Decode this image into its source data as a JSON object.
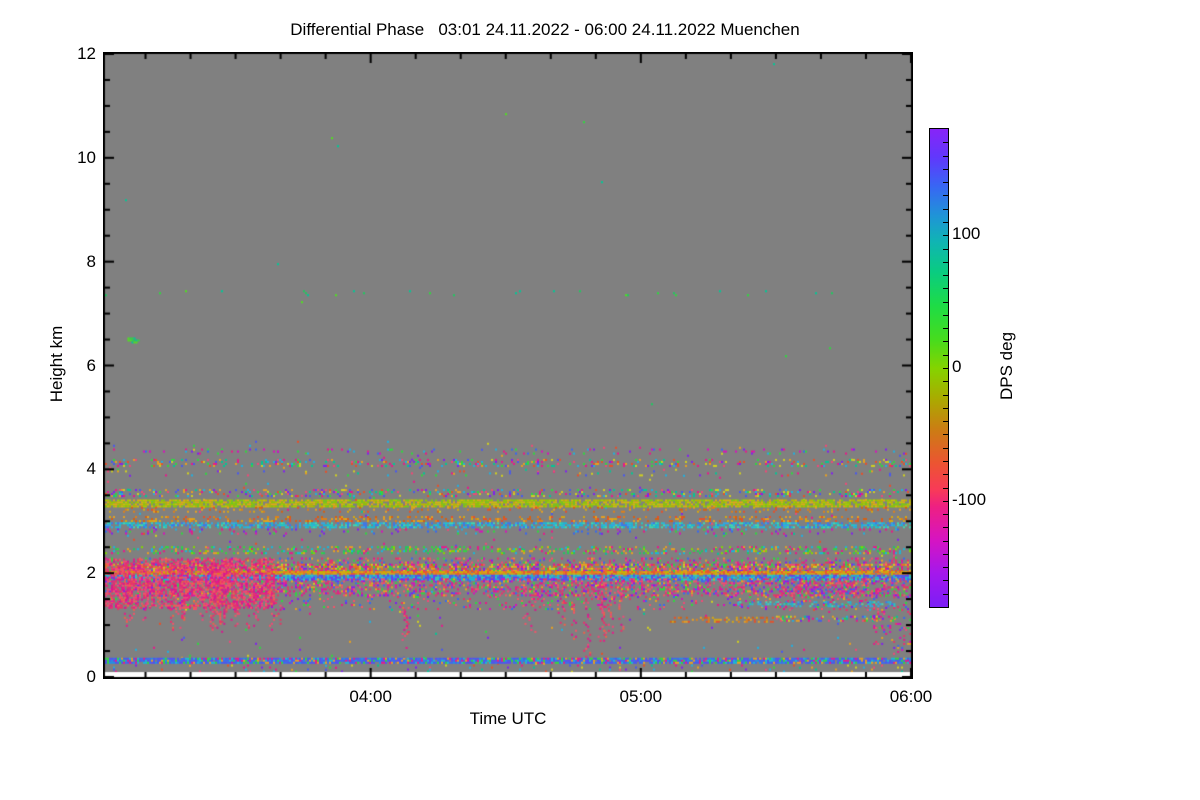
{
  "chart_data": {
    "type": "heatmap",
    "title": "Differential Phase   03:01 24.11.2022 - 06:00 24.11.2022 Muenchen",
    "xlabel": "Time UTC",
    "ylabel": "Height km",
    "background_color": "#808080",
    "below_range_color": "#ffffff",
    "x_axis": {
      "start_label": "03:01",
      "end_label": "06:00",
      "start_hours": 3.0167,
      "end_hours": 6.0,
      "major_ticks": [
        {
          "value": 4,
          "label": "04:00"
        },
        {
          "value": 5,
          "label": "05:00"
        },
        {
          "value": 6,
          "label": "06:00"
        }
      ],
      "minor_tick_minutes": 10
    },
    "y_axis": {
      "min": 0,
      "max": 12,
      "major_ticks": [
        0,
        2,
        4,
        6,
        8,
        10,
        12
      ],
      "minor_tick_km": 0.5
    },
    "colorbar": {
      "label": "DPS deg",
      "min": -180,
      "max": 180,
      "ticks": [
        {
          "value": 100,
          "label": "100"
        },
        {
          "value": 0,
          "label": "0"
        },
        {
          "value": -100,
          "label": "-100"
        }
      ],
      "minor_tick_deg": 10,
      "stops": [
        [
          0.0,
          "#8824F8"
        ],
        [
          0.06,
          "#6038FC"
        ],
        [
          0.12,
          "#3866F4"
        ],
        [
          0.18,
          "#2093D8"
        ],
        [
          0.235,
          "#10B4B4"
        ],
        [
          0.3,
          "#0ACC80"
        ],
        [
          0.37,
          "#1EDC46"
        ],
        [
          0.44,
          "#46DC1E"
        ],
        [
          0.5,
          "#84D400"
        ],
        [
          0.565,
          "#AAAA00"
        ],
        [
          0.63,
          "#CC7C14"
        ],
        [
          0.7,
          "#EC5432"
        ],
        [
          0.755,
          "#F83A58"
        ],
        [
          0.79,
          "#EE2082"
        ],
        [
          0.86,
          "#D614C2"
        ],
        [
          0.93,
          "#A418EC"
        ],
        [
          1.0,
          "#7C1EF6"
        ]
      ]
    },
    "seed": 7,
    "palettes": {
      "mixed": [
        "#E8188C",
        "#F04878",
        "#30D840",
        "#20B0E0",
        "#E8A020",
        "#8020F0",
        "#4858F0",
        "#D0D020",
        "#E85028",
        "#00C896"
      ],
      "greens": [
        "#30D840",
        "#20C860",
        "#50E020",
        "#00C896"
      ],
      "greens2": [
        "#30D840",
        "#20C860",
        "#80D800",
        "#E8188C",
        "#E8A020",
        "#18B8D8"
      ],
      "yellowgreen": [
        "#A8CC00",
        "#90C800",
        "#B8B800",
        "#CCBB10",
        "#78C818",
        "#E0A818"
      ],
      "orange": [
        "#E08018",
        "#E8A020",
        "#D86010",
        "#E85028",
        "#D8A810"
      ],
      "cyanline": [
        "#18B8D8",
        "#20C8C8",
        "#30A8E8",
        "#40D8B0",
        "#3878F0"
      ],
      "cyanblue": [
        "#2898E8",
        "#18B8D8",
        "#4858F0",
        "#30C8C0",
        "#6040F0"
      ],
      "orangeline": [
        "#E09018",
        "#D8A810",
        "#E87820",
        "#C8B400",
        "#E85830"
      ],
      "bluemulti": [
        "#4858F0",
        "#3A6CF0",
        "#2090E8",
        "#6048F0",
        "#E8188C",
        "#30D840",
        "#E8A020",
        "#18B8D8",
        "#4858F0",
        "#3A6CF0"
      ],
      "pinkhot": [
        "#F04878",
        "#EE2D6E",
        "#E8188C",
        "#F25568",
        "#E03868",
        "#D81690",
        "#F06048"
      ],
      "pinkmix": [
        "#F04878",
        "#E8188C",
        "#EE2D6E",
        "#D810BC",
        "#8020F0",
        "#30D840",
        "#E8A020",
        "#3868F0",
        "#F25568",
        "#E03868"
      ],
      "coolmix": [
        "#D810BC",
        "#8020F0",
        "#30D840",
        "#3868F0",
        "#E8188C",
        "#20B0E0"
      ],
      "warmmix": [
        "#E8A020",
        "#E85028",
        "#F04878",
        "#D0D020",
        "#30D840",
        "#E8188C",
        "#E07820",
        "#8020F0"
      ]
    },
    "features": [
      {
        "kind": "field",
        "t": [
          3.0167,
          6.0
        ],
        "h": [
          0.1,
          4.55
        ],
        "density": 0.007,
        "palette": "mixed"
      },
      {
        "kind": "field",
        "t": [
          3.0167,
          6.0
        ],
        "h": [
          4.55,
          11.9
        ],
        "density": 0.00015,
        "palette": "greens"
      },
      {
        "kind": "band",
        "t": [
          3.0167,
          6.0
        ],
        "h": [
          7.37,
          7.45
        ],
        "density": 0.02,
        "palette": "greens"
      },
      {
        "kind": "band",
        "t": [
          3.1,
          3.14
        ],
        "h": [
          6.44,
          6.54
        ],
        "density": 0.6,
        "palette": "greens"
      },
      {
        "kind": "band",
        "t": [
          3.0167,
          6.0
        ],
        "h": [
          4.3,
          4.4
        ],
        "density": 0.09,
        "palette": "coolmix"
      },
      {
        "kind": "band",
        "t": [
          3.0167,
          6.0
        ],
        "h": [
          4.08,
          4.2
        ],
        "density": 0.2,
        "palette": "mixed"
      },
      {
        "kind": "band",
        "t": [
          3.0167,
          6.0
        ],
        "h": [
          3.88,
          3.98
        ],
        "density": 0.05,
        "palette": "mixed"
      },
      {
        "kind": "band",
        "t": [
          3.0167,
          6.0
        ],
        "h": [
          3.5,
          3.62
        ],
        "density": 0.25,
        "palette": "mixed"
      },
      {
        "kind": "band",
        "t": [
          3.0167,
          6.0
        ],
        "h": [
          3.3,
          3.42
        ],
        "density": 0.8,
        "palette": "yellowgreen"
      },
      {
        "kind": "band",
        "t": [
          3.0167,
          6.0
        ],
        "h": [
          3.2,
          3.28
        ],
        "density": 0.15,
        "palette": "orange"
      },
      {
        "kind": "band",
        "t": [
          3.0167,
          6.0
        ],
        "h": [
          3.0,
          3.1
        ],
        "density": 0.28,
        "palette": "orange"
      },
      {
        "kind": "band",
        "t": [
          3.0167,
          6.0
        ],
        "h": [
          2.9,
          2.98
        ],
        "density": 0.6,
        "palette": "cyanline"
      },
      {
        "kind": "band",
        "t": [
          3.0167,
          6.0
        ],
        "h": [
          2.76,
          2.86
        ],
        "density": 0.12,
        "palette": "coolmix"
      },
      {
        "kind": "band",
        "t": [
          3.0167,
          6.0
        ],
        "h": [
          2.4,
          2.52
        ],
        "density": 0.3,
        "palette": "greens2"
      },
      {
        "kind": "band",
        "t": [
          3.0167,
          6.0
        ],
        "h": [
          2.18,
          2.3
        ],
        "density": 0.25,
        "palette": "pinkmix"
      },
      {
        "kind": "band",
        "t": [
          3.0167,
          6.0
        ],
        "h": [
          2.03,
          2.18
        ],
        "density": 0.62,
        "palette": "warmmix"
      },
      {
        "kind": "band",
        "t": [
          3.0167,
          6.0
        ],
        "h": [
          1.97,
          2.04
        ],
        "density": 0.92,
        "palette": "orangeline"
      },
      {
        "kind": "band",
        "t": [
          3.0167,
          6.0
        ],
        "h": [
          1.89,
          1.97
        ],
        "density": 0.85,
        "palette": "cyanblue"
      },
      {
        "kind": "band",
        "t": [
          3.0167,
          6.0
        ],
        "h": [
          1.56,
          1.9
        ],
        "density": 0.4,
        "palette": "pinkmix"
      },
      {
        "kind": "band",
        "t": [
          3.0167,
          6.0
        ],
        "h": [
          1.32,
          1.56
        ],
        "density": 0.12,
        "palette": "pinkmix"
      },
      {
        "kind": "blob",
        "t": [
          3.0167,
          3.64
        ],
        "h": [
          1.35,
          2.28
        ],
        "density": 0.5,
        "palette": "pinkhot"
      },
      {
        "kind": "streaks",
        "count": 40,
        "t": [
          3.03,
          3.68
        ],
        "h_top": 2.2,
        "h_bot": [
          0.85,
          1.6
        ],
        "density": 0.55,
        "palette": "pinkhot"
      },
      {
        "kind": "streaks",
        "count": 3,
        "t": [
          4.08,
          4.18
        ],
        "h_top": 1.35,
        "h_bot": [
          0.45,
          0.85
        ],
        "density": 0.5,
        "palette": "pinkhot"
      },
      {
        "kind": "streaks",
        "count": 2,
        "t": [
          4.5,
          4.6
        ],
        "h_top": 1.62,
        "h_bot": [
          0.8,
          1.05
        ],
        "density": 0.45,
        "palette": "pinkhot"
      },
      {
        "kind": "streaks",
        "count": 7,
        "t": [
          4.66,
          4.94
        ],
        "h_top": 1.95,
        "h_bot": [
          0.3,
          1.05
        ],
        "density": 0.6,
        "palette": "pinkhot"
      },
      {
        "kind": "streaks",
        "count": 4,
        "t": [
          5.56,
          5.96
        ],
        "h_top": 1.85,
        "h_bot": [
          1.0,
          1.45
        ],
        "density": 0.5,
        "palette": "pinkhot"
      },
      {
        "kind": "band",
        "t": [
          5.55,
          5.98
        ],
        "h": [
          1.52,
          1.9
        ],
        "density": 0.3,
        "palette": "pinkmix"
      },
      {
        "kind": "band",
        "t": [
          5.35,
          5.95
        ],
        "h": [
          1.38,
          1.46
        ],
        "density": 0.35,
        "palette": "cyanline"
      },
      {
        "kind": "band",
        "t": [
          5.1,
          5.5
        ],
        "h": [
          1.06,
          1.16
        ],
        "density": 0.4,
        "palette": "orange"
      },
      {
        "kind": "band",
        "t": [
          5.5,
          5.95
        ],
        "h": [
          1.1,
          1.18
        ],
        "density": 0.3,
        "palette": "mixed"
      },
      {
        "kind": "field",
        "t": [
          5.86,
          6.0
        ],
        "h": [
          0.5,
          1.35
        ],
        "density": 0.13,
        "palette": "pinkmix"
      },
      {
        "kind": "band",
        "t": [
          3.0167,
          6.0
        ],
        "h": [
          0.26,
          0.37
        ],
        "density": 0.93,
        "palette": "bluemulti"
      },
      {
        "kind": "band",
        "t": [
          3.0167,
          6.0
        ],
        "h": [
          0.12,
          0.24
        ],
        "density": 0.05,
        "palette": "mixed"
      }
    ]
  }
}
